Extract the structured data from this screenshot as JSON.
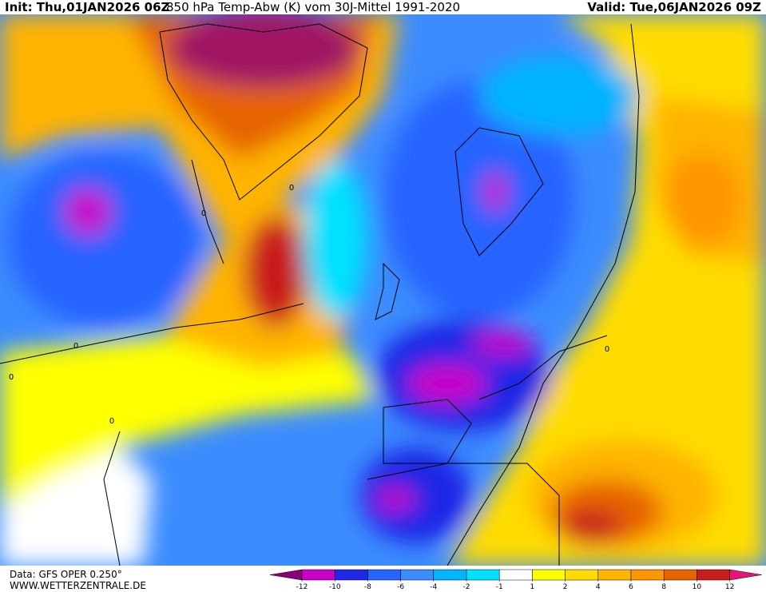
{
  "header": {
    "init": "Init: Thu,01JAN2026 06Z",
    "title": "850 hPa Temp-Abw (K) vom 30J-Mittel 1991-2020",
    "valid": "Valid: Tue,06JAN2026 09Z"
  },
  "footer": {
    "source": "Data: GFS OPER 0.250°",
    "site": "WWW.WETTERZENTRALE.DE"
  },
  "colorbar": {
    "colors": [
      "#8c0078",
      "#c800c8",
      "#1e28e6",
      "#2864ff",
      "#3c8cff",
      "#00b4ff",
      "#00e1ff",
      "#ffffff",
      "#ffff00",
      "#ffdc00",
      "#ffb400",
      "#ff9600",
      "#e66400",
      "#c81e1e",
      "#e6147a"
    ],
    "ticks": [
      -12,
      -10,
      -8,
      -6,
      -4,
      -2,
      -1,
      1,
      2,
      4,
      6,
      8,
      10,
      12
    ]
  },
  "contour_labels": [
    0,
    0,
    0,
    0,
    0,
    0
  ]
}
